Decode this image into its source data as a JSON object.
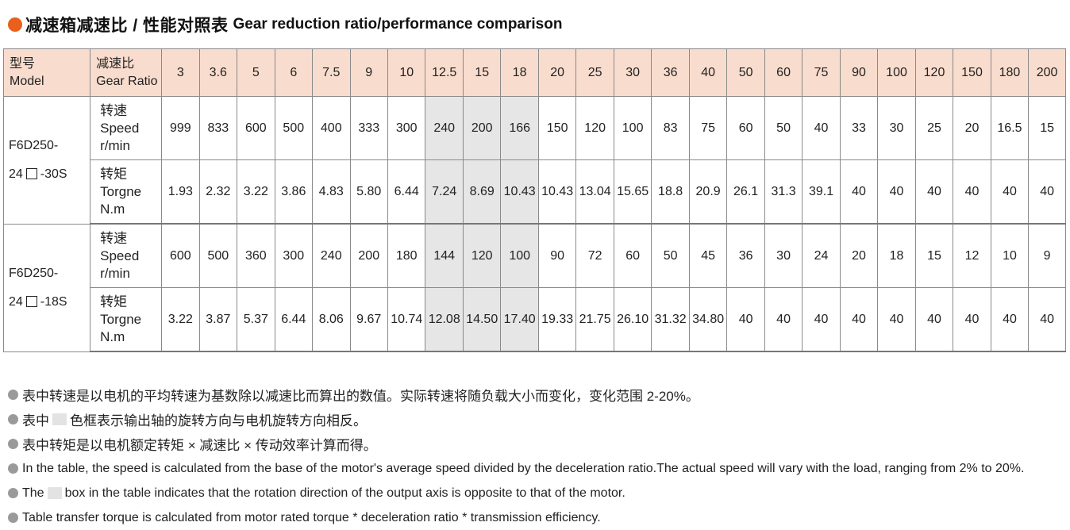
{
  "title": {
    "zh": "减速箱减速比 / 性能对照表",
    "en": "Gear reduction ratio/performance comparison",
    "accent_color": "#e8601c"
  },
  "table": {
    "header": {
      "model_zh": "型号",
      "model_en": "Model",
      "ratio_zh": "减速比",
      "ratio_en": "Gear Ratio",
      "header_bg": "#f8dccd"
    },
    "ratios": [
      "3",
      "3.6",
      "5",
      "6",
      "7.5",
      "9",
      "10",
      "12.5",
      "15",
      "18",
      "20",
      "25",
      "30",
      "36",
      "40",
      "50",
      "60",
      "75",
      "90",
      "100",
      "120",
      "150",
      "180",
      "200"
    ],
    "shaded_ratio_indices": [
      7,
      8,
      9
    ],
    "shade_color": "#e6e6e6",
    "groups": [
      {
        "model_line1": "F6D250-",
        "model_line2_prefix": "24",
        "model_line2_suffix": "-30S",
        "rows": [
          {
            "param_zh": "转速",
            "param_en": "Speed",
            "unit": "r/min",
            "values": [
              "999",
              "833",
              "600",
              "500",
              "400",
              "333",
              "300",
              "240",
              "200",
              "166",
              "150",
              "120",
              "100",
              "83",
              "75",
              "60",
              "50",
              "40",
              "33",
              "30",
              "25",
              "20",
              "16.5",
              "15"
            ]
          },
          {
            "param_zh": "转矩",
            "param_en": "Torgne",
            "unit": "N.m",
            "values": [
              "1.93",
              "2.32",
              "3.22",
              "3.86",
              "4.83",
              "5.80",
              "6.44",
              "7.24",
              "8.69",
              "10.43",
              "10.43",
              "13.04",
              "15.65",
              "18.8",
              "20.9",
              "26.1",
              "31.3",
              "39.1",
              "40",
              "40",
              "40",
              "40",
              "40",
              "40"
            ]
          }
        ]
      },
      {
        "model_line1": "F6D250-",
        "model_line2_prefix": "24",
        "model_line2_suffix": "-18S",
        "rows": [
          {
            "param_zh": "转速",
            "param_en": "Speed",
            "unit": "r/min",
            "values": [
              "600",
              "500",
              "360",
              "300",
              "240",
              "200",
              "180",
              "144",
              "120",
              "100",
              "90",
              "72",
              "60",
              "50",
              "45",
              "36",
              "30",
              "24",
              "20",
              "18",
              "15",
              "12",
              "10",
              "9"
            ]
          },
          {
            "param_zh": "转矩",
            "param_en": "Torgne",
            "unit": "N.m",
            "values": [
              "3.22",
              "3.87",
              "5.37",
              "6.44",
              "8.06",
              "9.67",
              "10.74",
              "12.08",
              "14.50",
              "17.40",
              "19.33",
              "21.75",
              "26.10",
              "31.32",
              "34.80",
              "40",
              "40",
              "40",
              "40",
              "40",
              "40",
              "40",
              "40",
              "40"
            ]
          }
        ]
      }
    ]
  },
  "notes": {
    "zh1": "表中转速是以电机的平均转速为基数除以减速比而算出的数值。实际转速将随负载大小而变化，变化范围 2-20%。",
    "zh2_before": "表中",
    "zh2_after": "色框表示输出轴的旋转方向与电机旋转方向相反。",
    "zh3": "表中转矩是以电机额定转矩 × 减速比 × 传动效率计算而得。",
    "en1": "In the table, the speed is calculated from the base of the motor's average speed  divided by the deceleration ratio.The actual speed will vary with the load, ranging from 2% to 20%.",
    "en2_before": "The",
    "en2_after": "box in the table indicates that the rotation direction of the output axis is opposite to that of the motor.",
    "en3": "Table transfer torque is calculated from motor rated torque * deceleration ratio * transmission efficiency."
  }
}
